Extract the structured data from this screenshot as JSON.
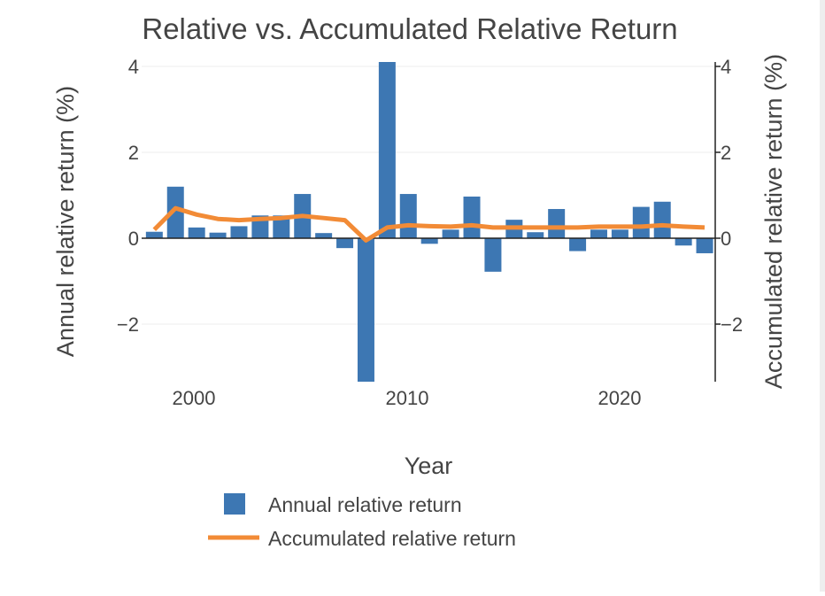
{
  "chart_data": {
    "type": "bar",
    "title": "Relative vs. Accumulated Relative Return",
    "xlabel": "Year",
    "ylabel": "Annual relative return (%)",
    "y2label": "Accumulated relative return (%)",
    "x_ticks": [
      "2000",
      "2010",
      "2020"
    ],
    "y_ticks": [
      "−2",
      "0",
      "2",
      "4"
    ],
    "y2_ticks": [
      "−2",
      "0",
      "2",
      "4"
    ],
    "ylim": [
      -3.4,
      4.1
    ],
    "xlim": [
      1997.4,
      2024.5
    ],
    "grid": true,
    "legend_position": "bottom",
    "colors": {
      "bar": "#3d77b3",
      "line": "#f28b36",
      "grid": "#eeeeee",
      "axis": "#222222",
      "text": "#444444"
    },
    "series": [
      {
        "name": "Annual relative return",
        "type": "bar",
        "x": [
          1998,
          1999,
          2000,
          2001,
          2002,
          2003,
          2004,
          2005,
          2006,
          2007,
          2008,
          2009,
          2010,
          2011,
          2012,
          2013,
          2014,
          2015,
          2016,
          2017,
          2018,
          2019,
          2020,
          2021,
          2022,
          2023,
          2024
        ],
        "values": [
          0.15,
          1.2,
          0.25,
          0.13,
          0.28,
          0.53,
          0.53,
          1.03,
          0.12,
          -0.23,
          -3.4,
          4.15,
          1.03,
          -0.13,
          0.2,
          0.97,
          -0.78,
          0.43,
          0.14,
          0.68,
          -0.3,
          0.2,
          0.2,
          0.73,
          0.85,
          -0.17,
          -0.35
        ]
      },
      {
        "name": "Accumulated relative return",
        "type": "line",
        "x": [
          1998,
          1999,
          2000,
          2001,
          2002,
          2003,
          2004,
          2005,
          2006,
          2007,
          2008,
          2009,
          2010,
          2011,
          2012,
          2013,
          2014,
          2015,
          2016,
          2017,
          2018,
          2019,
          2020,
          2021,
          2022,
          2023,
          2024
        ],
        "values": [
          0.2,
          0.7,
          0.55,
          0.45,
          0.42,
          0.45,
          0.47,
          0.52,
          0.47,
          0.42,
          -0.05,
          0.25,
          0.3,
          0.28,
          0.27,
          0.3,
          0.25,
          0.25,
          0.25,
          0.25,
          0.25,
          0.27,
          0.27,
          0.27,
          0.3,
          0.27,
          0.25
        ]
      }
    ]
  }
}
